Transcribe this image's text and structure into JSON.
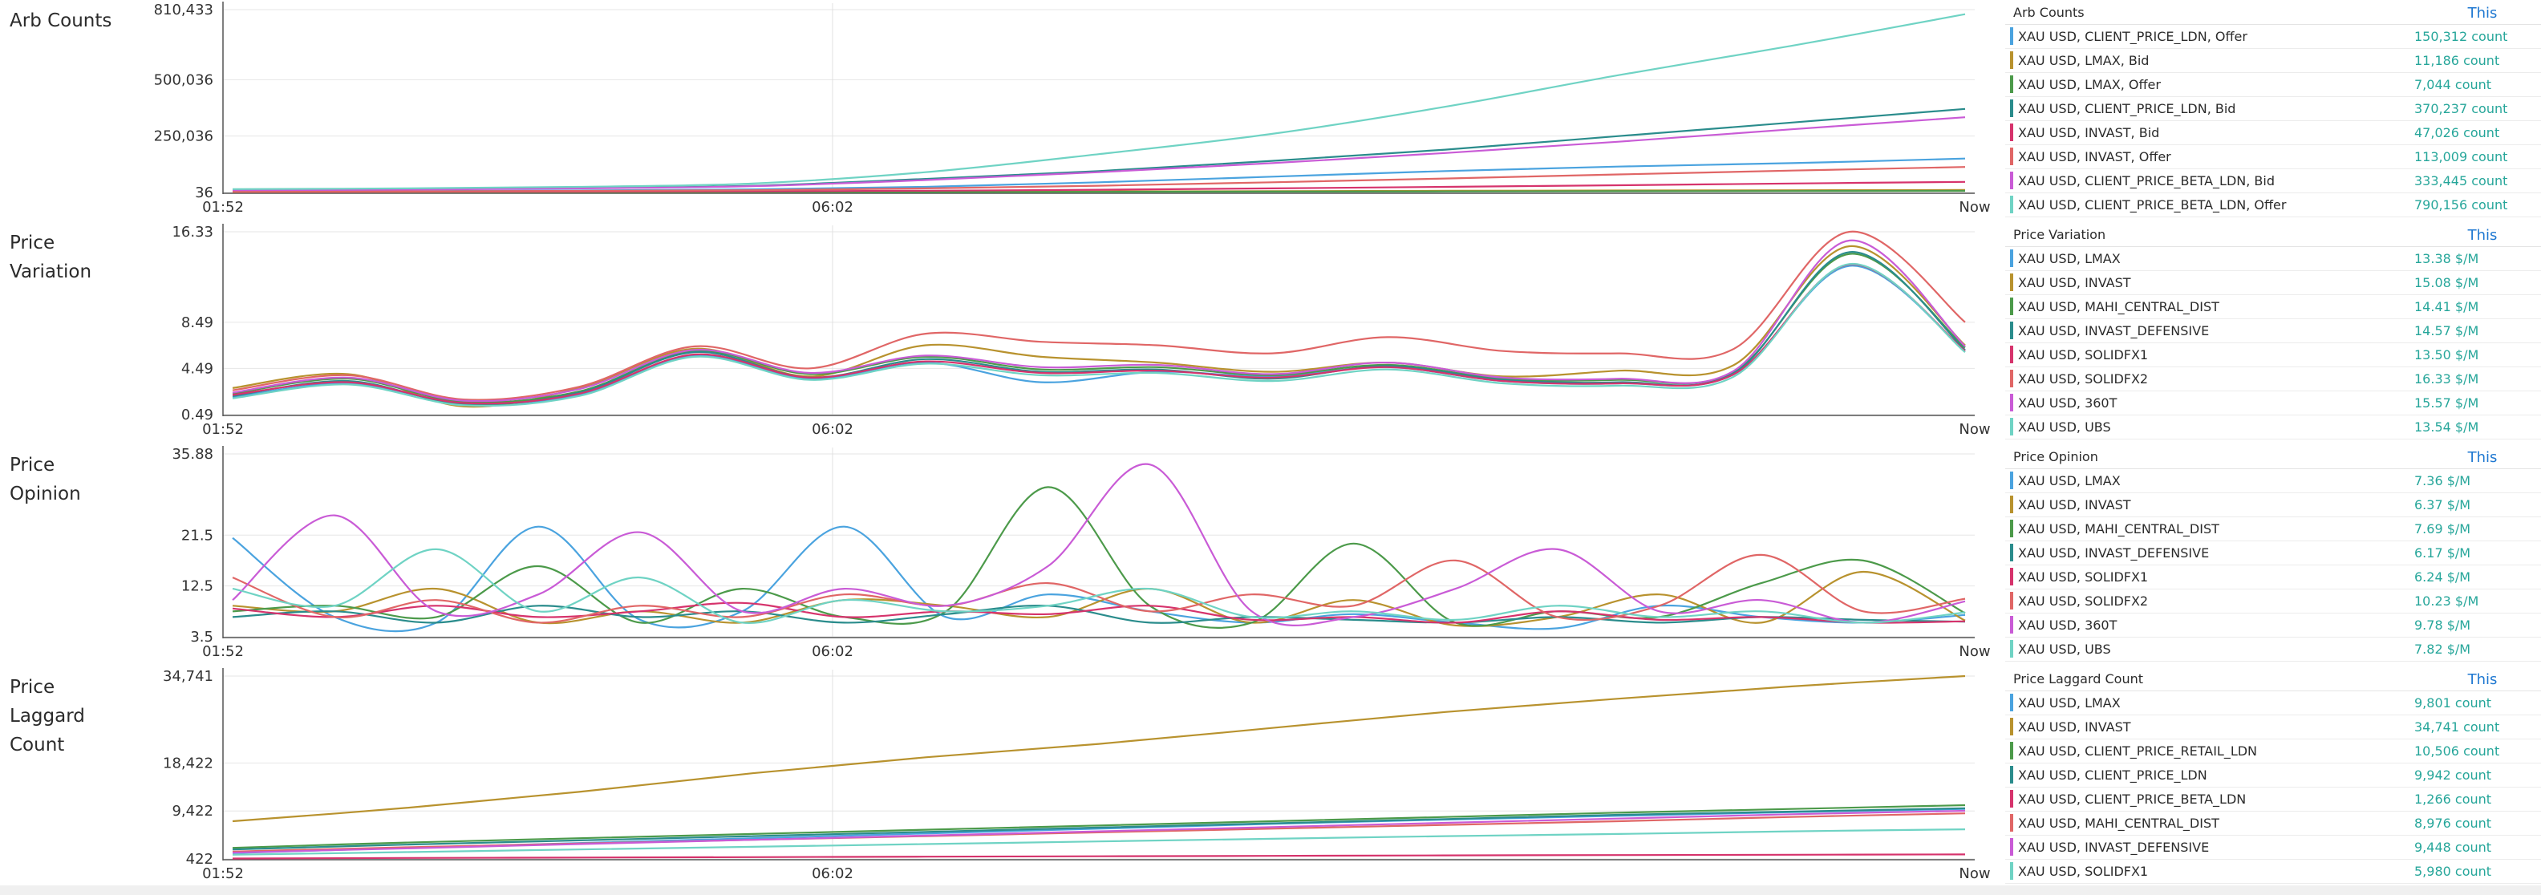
{
  "legend_column_label": "This",
  "x_ticks": [
    "01:52",
    "06:02",
    "Now"
  ],
  "chart_data": [
    {
      "type": "line",
      "title": "Arb Counts",
      "ylim": [
        36,
        810433
      ],
      "y_ticks": [
        "810,433",
        "500,036",
        "250,036",
        "36"
      ],
      "x_ticks": [
        "01:52",
        "06:02",
        "Now"
      ],
      "grid": true,
      "legend_placement": "right",
      "series": [
        {
          "name": "XAU USD, CLIENT_PRICE_LDN, Offer",
          "color": "#4aa3df",
          "value": "150,312 count",
          "y": [
            5000,
            6000,
            9000,
            14000,
            25000,
            45000,
            70000,
            95000,
            115000,
            130000,
            150312
          ]
        },
        {
          "name": "XAU USD, LMAX, Bid",
          "color": "#b8922e",
          "value": "11,186 count",
          "y": [
            500,
            800,
            1200,
            2000,
            3000,
            4500,
            6000,
            7500,
            9000,
            10000,
            11186
          ]
        },
        {
          "name": "XAU USD, LMAX, Offer",
          "color": "#4c9a4a",
          "value": "7,044 count",
          "y": [
            300,
            500,
            800,
            1300,
            2000,
            2800,
            3800,
            4800,
            5700,
            6400,
            7044
          ]
        },
        {
          "name": "XAU USD, CLIENT_PRICE_LDN, Bid",
          "color": "#2a8c8c",
          "value": "370,237 count",
          "y": [
            12000,
            15000,
            20000,
            30000,
            60000,
            95000,
            140000,
            190000,
            250000,
            310000,
            370237
          ]
        },
        {
          "name": "XAU USD, INVAST, Bid",
          "color": "#d6336c",
          "value": "47,026 count",
          "y": [
            2000,
            2500,
            3500,
            5000,
            8000,
            12000,
            18000,
            25000,
            32000,
            40000,
            47026
          ]
        },
        {
          "name": "XAU USD, INVAST, Offer",
          "color": "#e06666",
          "value": "113,009 count",
          "y": [
            4000,
            5000,
            7000,
            10000,
            18000,
            30000,
            45000,
            62000,
            80000,
            97000,
            113009
          ]
        },
        {
          "name": "XAU USD, CLIENT_PRICE_BETA_LDN, Bid",
          "color": "#c95bd6",
          "value": "333,445 count",
          "y": [
            10000,
            13000,
            18000,
            28000,
            55000,
            90000,
            130000,
            175000,
            225000,
            280000,
            333445
          ]
        },
        {
          "name": "XAU USD, CLIENT_PRICE_BETA_LDN, Offer",
          "color": "#6fd3c4",
          "value": "790,156 count",
          "y": [
            15000,
            18000,
            25000,
            40000,
            90000,
            170000,
            260000,
            380000,
            520000,
            650000,
            790156
          ]
        }
      ]
    },
    {
      "type": "line",
      "title": "Price Variation",
      "ylim": [
        0.49,
        16.33
      ],
      "y_ticks": [
        "16.33",
        "8.49",
        "4.49",
        "0.49"
      ],
      "x_ticks": [
        "01:52",
        "06:02",
        "Now"
      ],
      "grid": true,
      "legend_placement": "right",
      "series": [
        {
          "name": "XAU USD, LMAX",
          "color": "#4aa3df",
          "value": "13.38 $/M",
          "y": [
            2.0,
            3.2,
            1.5,
            2.2,
            5.6,
            3.6,
            5.0,
            3.3,
            4.2,
            3.8,
            4.6,
            3.4,
            3.2,
            4.0,
            13.38,
            6.0
          ]
        },
        {
          "name": "XAU USD, INVAST",
          "color": "#b8922e",
          "value": "15.08 $/M",
          "y": [
            2.8,
            4.0,
            1.2,
            2.8,
            6.2,
            3.8,
            6.5,
            5.5,
            5.0,
            4.2,
            5.0,
            3.8,
            4.3,
            4.8,
            15.08,
            6.5
          ]
        },
        {
          "name": "XAU USD, MAHI_CENTRAL_DIST",
          "color": "#4c9a4a",
          "value": "14.41 $/M",
          "y": [
            2.3,
            3.6,
            1.6,
            2.5,
            6.0,
            4.0,
            5.5,
            4.4,
            4.6,
            3.9,
            4.8,
            3.6,
            3.5,
            4.2,
            14.41,
            6.3
          ]
        },
        {
          "name": "XAU USD, INVAST_DEFENSIVE",
          "color": "#2a8c8c",
          "value": "14.57 $/M",
          "y": [
            2.1,
            3.4,
            1.4,
            2.4,
            5.9,
            3.7,
            5.3,
            4.2,
            4.4,
            3.6,
            4.7,
            3.5,
            3.3,
            4.1,
            14.57,
            6.1
          ]
        },
        {
          "name": "XAU USD, SOLIDFX1",
          "color": "#d6336c",
          "value": "13.50 $/M",
          "y": [
            2.2,
            3.3,
            1.5,
            2.3,
            5.7,
            3.7,
            5.1,
            4.1,
            4.3,
            3.7,
            4.6,
            3.4,
            3.2,
            4.0,
            13.5,
            6.0
          ]
        },
        {
          "name": "XAU USD, SOLIDFX2",
          "color": "#e06666",
          "value": "16.33 $/M",
          "y": [
            2.6,
            3.9,
            1.8,
            2.9,
            6.4,
            4.5,
            7.5,
            6.8,
            6.5,
            5.8,
            7.2,
            6.0,
            5.8,
            6.2,
            16.33,
            8.5
          ]
        },
        {
          "name": "XAU USD, 360T",
          "color": "#c95bd6",
          "value": "15.57 $/M",
          "y": [
            2.4,
            3.7,
            1.7,
            2.7,
            6.1,
            4.1,
            5.6,
            4.6,
            4.8,
            4.0,
            5.0,
            3.7,
            3.6,
            4.3,
            15.57,
            6.4
          ]
        },
        {
          "name": "XAU USD, UBS",
          "color": "#6fd3c4",
          "value": "13.54 $/M",
          "y": [
            1.9,
            3.1,
            1.3,
            2.1,
            5.5,
            3.5,
            4.9,
            3.9,
            4.1,
            3.4,
            4.4,
            3.2,
            3.0,
            3.8,
            13.54,
            5.9
          ]
        }
      ]
    },
    {
      "type": "line",
      "title": "Price Opinion",
      "ylim": [
        3.5,
        35.88
      ],
      "y_ticks": [
        "35.88",
        "21.5",
        "12.5",
        "3.5"
      ],
      "x_ticks": [
        "01:52",
        "06:02",
        "Now"
      ],
      "grid": true,
      "legend_placement": "right",
      "series": [
        {
          "name": "XAU USD, LMAX",
          "color": "#4aa3df",
          "value": "7.36 $/M",
          "y": [
            21.0,
            7.0,
            6.0,
            23.0,
            6.5,
            8.0,
            23.0,
            7.0,
            11.0,
            8.0,
            6.0,
            7.5,
            6.0,
            5.0,
            9.0,
            7.0,
            6.0,
            7.36
          ]
        },
        {
          "name": "XAU USD, INVAST",
          "color": "#b8922e",
          "value": "6.37 $/M",
          "y": [
            9.0,
            8.0,
            12.0,
            6.0,
            8.0,
            6.0,
            10.0,
            9.0,
            7.0,
            12.0,
            6.0,
            10.0,
            5.5,
            7.0,
            11.0,
            6.0,
            15.0,
            6.37
          ]
        },
        {
          "name": "XAU USD, MAHI_CENTRAL_DIST",
          "color": "#4c9a4a",
          "value": "7.69 $/M",
          "y": [
            8.0,
            9.0,
            7.0,
            16.0,
            6.0,
            12.0,
            7.0,
            8.0,
            30.0,
            9.0,
            6.0,
            20.0,
            6.0,
            8.0,
            7.0,
            13.0,
            17.0,
            7.69
          ]
        },
        {
          "name": "XAU USD, INVAST_DEFENSIVE",
          "color": "#2a8c8c",
          "value": "6.17 $/M",
          "y": [
            7.0,
            8.0,
            6.0,
            9.0,
            7.0,
            8.0,
            6.0,
            7.5,
            9.0,
            6.0,
            7.0,
            6.5,
            6.0,
            7.0,
            6.0,
            7.0,
            6.5,
            6.17
          ]
        },
        {
          "name": "XAU USD, SOLIDFX1",
          "color": "#d6336c",
          "value": "6.24 $/M",
          "y": [
            8.5,
            7.0,
            9.0,
            7.0,
            8.0,
            9.5,
            7.0,
            8.0,
            7.5,
            9.0,
            6.5,
            7.0,
            6.0,
            8.0,
            6.5,
            7.0,
            6.0,
            6.24
          ]
        },
        {
          "name": "XAU USD, SOLIDFX2",
          "color": "#e06666",
          "value": "10.23 $/M",
          "y": [
            14.0,
            7.0,
            10.0,
            6.0,
            9.0,
            7.0,
            11.0,
            9.0,
            13.0,
            8.0,
            11.0,
            9.0,
            17.0,
            7.0,
            9.0,
            18.0,
            8.0,
            10.23
          ]
        },
        {
          "name": "XAU USD, 360T",
          "color": "#c95bd6",
          "value": "9.78 $/M",
          "y": [
            10.0,
            25.0,
            8.0,
            11.0,
            22.0,
            8.0,
            12.0,
            9.0,
            16.0,
            34.0,
            8.0,
            7.0,
            12.0,
            19.0,
            8.0,
            10.0,
            6.0,
            9.78
          ]
        },
        {
          "name": "XAU USD, UBS",
          "color": "#6fd3c4",
          "value": "7.82 $/M",
          "y": [
            12.0,
            9.0,
            19.0,
            8.0,
            14.0,
            6.0,
            10.0,
            8.0,
            9.0,
            12.0,
            7.0,
            8.0,
            6.5,
            9.0,
            7.0,
            8.0,
            6.0,
            7.82
          ]
        }
      ]
    },
    {
      "type": "line",
      "title": "Price Laggard Count",
      "ylim": [
        422,
        34741
      ],
      "y_ticks": [
        "34,741",
        "18,422",
        "9,422",
        "422"
      ],
      "x_ticks": [
        "01:52",
        "06:02",
        "Now"
      ],
      "grid": true,
      "legend_placement": "right",
      "series": [
        {
          "name": "XAU USD, LMAX",
          "color": "#4aa3df",
          "value": "9,801 count",
          "y": [
            1500,
            2500,
            3400,
            4300,
            5200,
            6100,
            7000,
            7800,
            8500,
            9200,
            9801
          ]
        },
        {
          "name": "XAU USD, INVAST",
          "color": "#b8922e",
          "value": "34,741 count",
          "y": [
            7500,
            10000,
            13000,
            16500,
            19500,
            22000,
            25000,
            28000,
            30500,
            32800,
            34741
          ]
        },
        {
          "name": "XAU USD, CLIENT_PRICE_RETAIL_LDN",
          "color": "#4c9a4a",
          "value": "10,506 count",
          "y": [
            2500,
            3500,
            4300,
            5100,
            5900,
            6700,
            7500,
            8300,
            9100,
            9800,
            10506
          ]
        },
        {
          "name": "XAU USD, CLIENT_PRICE_LDN",
          "color": "#2a8c8c",
          "value": "9,942 count",
          "y": [
            2200,
            3100,
            3900,
            4700,
            5500,
            6300,
            7100,
            7900,
            8700,
            9300,
            9942
          ]
        },
        {
          "name": "XAU USD, CLIENT_PRICE_BETA_LDN",
          "color": "#d6336c",
          "value": "1,266 count",
          "y": [
            500,
            600,
            680,
            760,
            840,
            920,
            1000,
            1080,
            1150,
            1210,
            1266
          ]
        },
        {
          "name": "XAU USD, MAHI_CENTRAL_DIST",
          "color": "#e06666",
          "value": "8,976 count",
          "y": [
            1800,
            2600,
            3300,
            4000,
            4700,
            5400,
            6100,
            6800,
            7500,
            8300,
            8976
          ]
        },
        {
          "name": "XAU USD, INVAST_DEFENSIVE",
          "color": "#c95bd6",
          "value": "9,448 count",
          "y": [
            1600,
            2400,
            3200,
            4000,
            4800,
            5600,
            6400,
            7200,
            8000,
            8800,
            9448
          ]
        },
        {
          "name": "XAU USD, SOLIDFX1",
          "color": "#6fd3c4",
          "value": "5,980 count",
          "y": [
            1200,
            1700,
            2200,
            2700,
            3200,
            3700,
            4200,
            4700,
            5100,
            5600,
            5980
          ]
        }
      ]
    }
  ]
}
